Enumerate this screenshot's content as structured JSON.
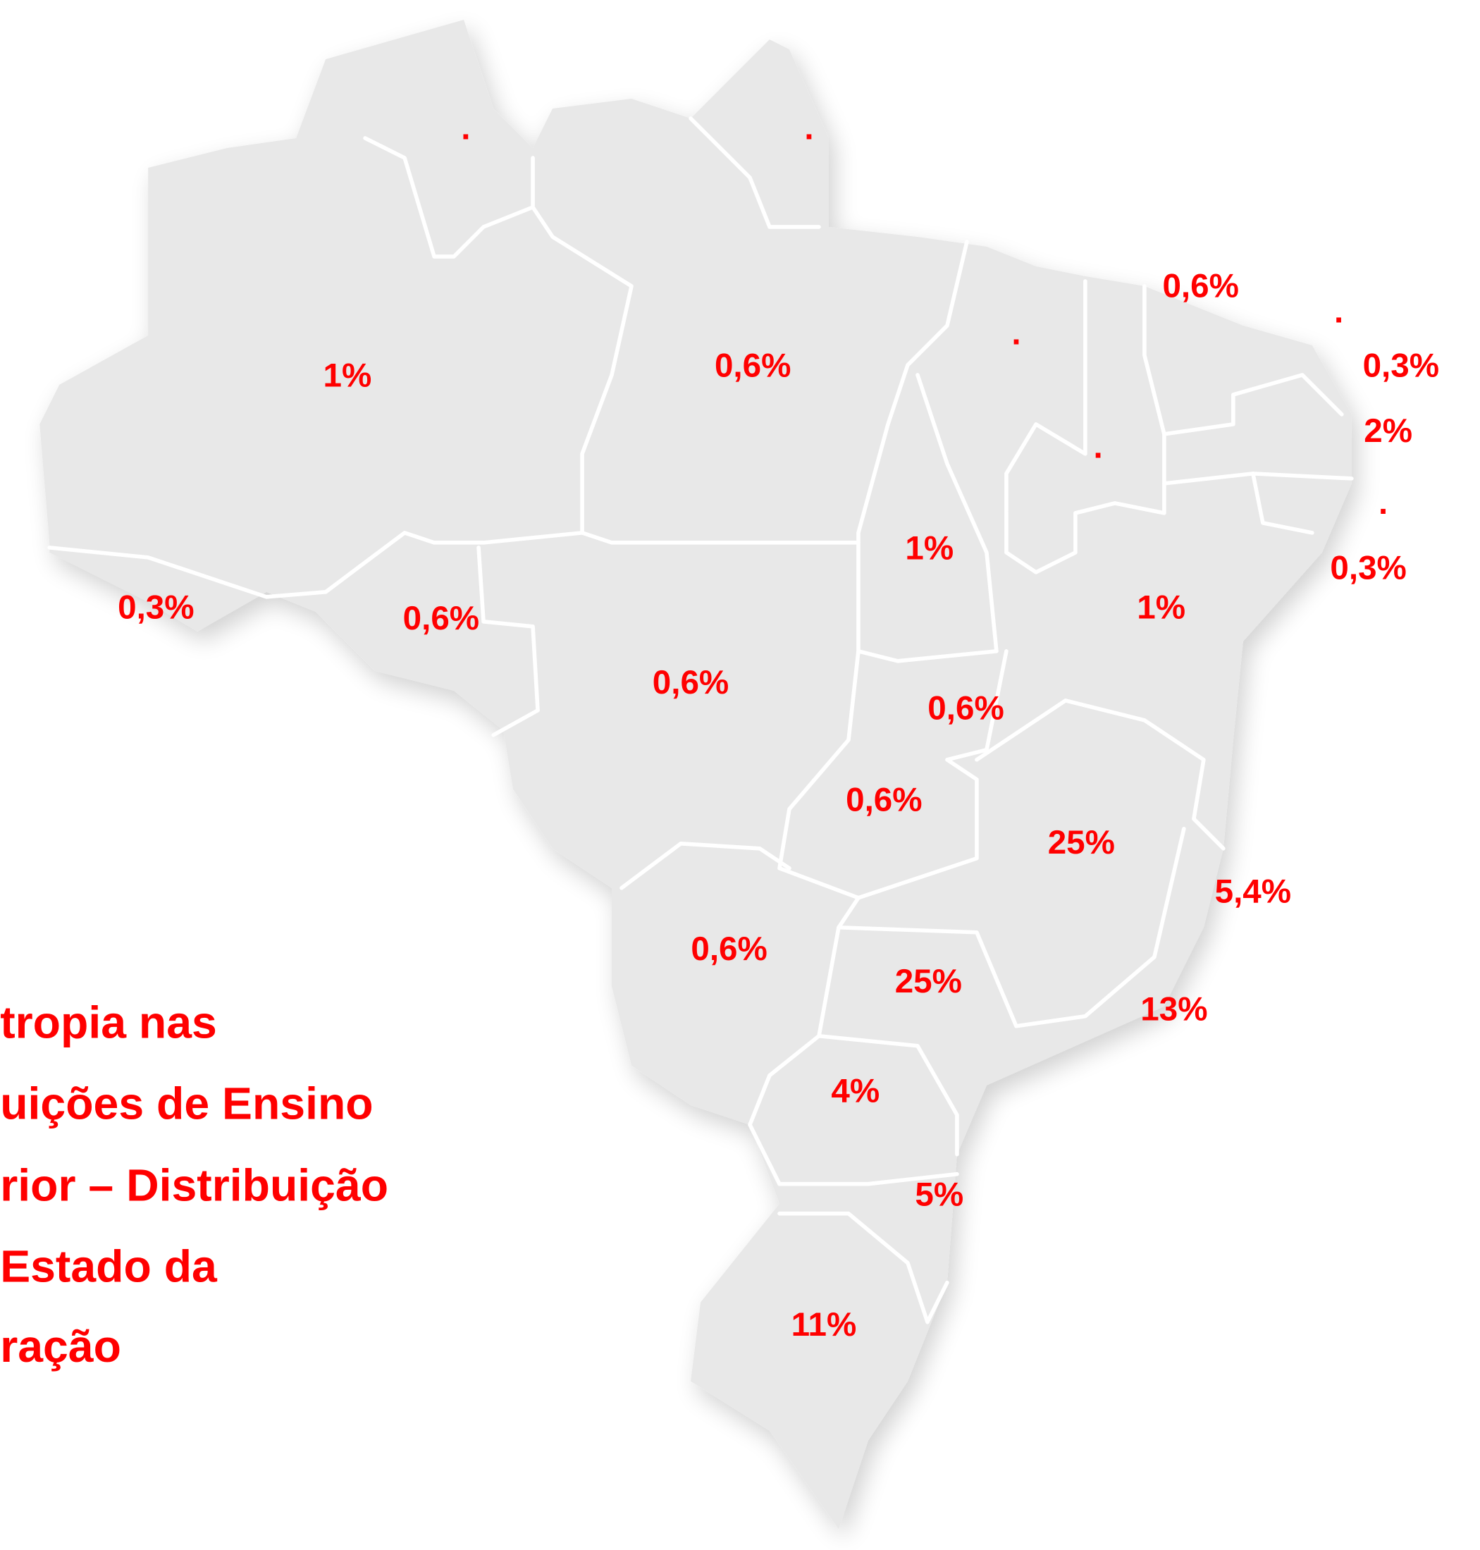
{
  "title_lines": [
    "tropia nas",
    "uições de Ensino",
    "rior – Distribuição",
    "Estado da",
    "ração"
  ],
  "labels": [
    ".",
    ".",
    "0,6%",
    ".",
    ".",
    "0,3%",
    "1%",
    "0,6%",
    "2%",
    ".",
    ".",
    "1%",
    "0,3%",
    "0,3%",
    "0,6%",
    "1%",
    "0,6%",
    "0,6%",
    "0,6%",
    "25%",
    "5,4%",
    "0,6%",
    "25%",
    "13%",
    "4%",
    "5%",
    "11%"
  ]
}
